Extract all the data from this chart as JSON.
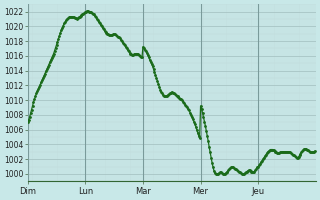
{
  "background_color": "#c8e8e8",
  "grid_minor_color": "#c0d8d8",
  "grid_major_color": "#a8c4c4",
  "line_color": "#1a6b1a",
  "dot_color": "#1a6b1a",
  "ylim": [
    999,
    1023
  ],
  "ytick_step": 2,
  "yticks": [
    1000,
    1002,
    1004,
    1006,
    1008,
    1010,
    1012,
    1014,
    1016,
    1018,
    1020,
    1022
  ],
  "day_labels": [
    "Dim",
    "Lun",
    "Mar",
    "Mer",
    "Jeu"
  ],
  "day_positions": [
    0,
    60,
    120,
    180,
    240
  ],
  "total_points": 300,
  "pressure_values": [
    1007.0,
    1007.3,
    1007.7,
    1008.2,
    1008.7,
    1009.2,
    1009.7,
    1010.1,
    1010.5,
    1010.9,
    1011.2,
    1011.5,
    1011.8,
    1012.1,
    1012.4,
    1012.7,
    1013.0,
    1013.3,
    1013.6,
    1013.9,
    1014.2,
    1014.5,
    1014.8,
    1015.1,
    1015.4,
    1015.7,
    1016.0,
    1016.3,
    1016.7,
    1017.1,
    1017.5,
    1017.9,
    1018.3,
    1018.7,
    1019.1,
    1019.5,
    1019.8,
    1020.1,
    1020.4,
    1020.6,
    1020.8,
    1021.0,
    1021.1,
    1021.2,
    1021.3,
    1021.3,
    1021.3,
    1021.2,
    1021.2,
    1021.1,
    1021.1,
    1021.0,
    1021.1,
    1021.2,
    1021.3,
    1021.4,
    1021.5,
    1021.6,
    1021.7,
    1021.8,
    1021.9,
    1022.0,
    1022.1,
    1022.1,
    1022.0,
    1022.0,
    1021.9,
    1021.8,
    1021.7,
    1021.6,
    1021.4,
    1021.2,
    1021.0,
    1020.8,
    1020.6,
    1020.4,
    1020.2,
    1020.0,
    1019.8,
    1019.6,
    1019.4,
    1019.2,
    1019.1,
    1019.0,
    1018.9,
    1018.8,
    1018.8,
    1018.8,
    1018.8,
    1018.9,
    1018.9,
    1018.9,
    1018.8,
    1018.7,
    1018.6,
    1018.5,
    1018.4,
    1018.2,
    1018.0,
    1017.8,
    1017.6,
    1017.4,
    1017.2,
    1017.0,
    1016.8,
    1016.6,
    1016.4,
    1016.3,
    1016.2,
    1016.1,
    1016.1,
    1016.2,
    1016.2,
    1016.3,
    1016.3,
    1016.2,
    1016.1,
    1016.0,
    1015.9,
    1015.8,
    1017.2,
    1017.0,
    1016.8,
    1016.6,
    1016.4,
    1016.1,
    1015.8,
    1015.5,
    1015.2,
    1014.9,
    1014.6,
    1014.2,
    1013.8,
    1013.4,
    1013.0,
    1012.6,
    1012.2,
    1011.8,
    1011.4,
    1011.1,
    1010.9,
    1010.7,
    1010.6,
    1010.5,
    1010.5,
    1010.6,
    1010.7,
    1010.8,
    1010.9,
    1011.0,
    1011.1,
    1011.0,
    1010.9,
    1010.8,
    1010.7,
    1010.6,
    1010.5,
    1010.4,
    1010.3,
    1010.2,
    1010.1,
    1010.0,
    1009.8,
    1009.6,
    1009.4,
    1009.2,
    1009.0,
    1008.8,
    1008.6,
    1008.3,
    1008.0,
    1007.7,
    1007.4,
    1007.1,
    1006.8,
    1006.4,
    1006.0,
    1005.6,
    1005.2,
    1004.8,
    1009.2,
    1008.8,
    1008.3,
    1007.7,
    1007.1,
    1006.5,
    1005.8,
    1005.1,
    1004.4,
    1003.6,
    1002.9,
    1002.2,
    1001.5,
    1000.9,
    1000.4,
    1000.1,
    1000.0,
    1000.0,
    1000.0,
    1000.1,
    1000.2,
    1000.2,
    1000.1,
    1000.0,
    1000.0,
    1000.0,
    1000.1,
    1000.2,
    1000.3,
    1000.5,
    1000.7,
    1000.8,
    1000.9,
    1000.9,
    1000.9,
    1000.8,
    1000.7,
    1000.6,
    1000.5,
    1000.4,
    1000.3,
    1000.2,
    1000.1,
    1000.0,
    1000.0,
    1000.0,
    1000.1,
    1000.2,
    1000.3,
    1000.4,
    1000.5,
    1000.5,
    1000.4,
    1000.3,
    1000.2,
    1000.2,
    1000.3,
    1000.5,
    1000.7,
    1000.9,
    1001.0,
    1001.2,
    1001.4,
    1001.6,
    1001.8,
    1002.0,
    1002.2,
    1002.4,
    1002.6,
    1002.8,
    1003.0,
    1003.1,
    1003.2,
    1003.3,
    1003.3,
    1003.3,
    1003.2,
    1003.1,
    1003.0,
    1002.9,
    1002.8,
    1002.8,
    1002.8,
    1002.9,
    1002.9,
    1003.0,
    1003.0,
    1003.0,
    1003.0,
    1003.0,
    1003.0,
    1003.0,
    1003.0,
    1002.9,
    1002.8,
    1002.7,
    1002.6,
    1002.5,
    1002.4,
    1002.3,
    1002.2,
    1002.2,
    1002.3,
    1002.5,
    1002.7,
    1002.9,
    1003.1,
    1003.3,
    1003.4,
    1003.4,
    1003.4,
    1003.3,
    1003.2,
    1003.1,
    1003.0,
    1002.9,
    1002.9,
    1002.9,
    1003.0,
    1003.1
  ]
}
